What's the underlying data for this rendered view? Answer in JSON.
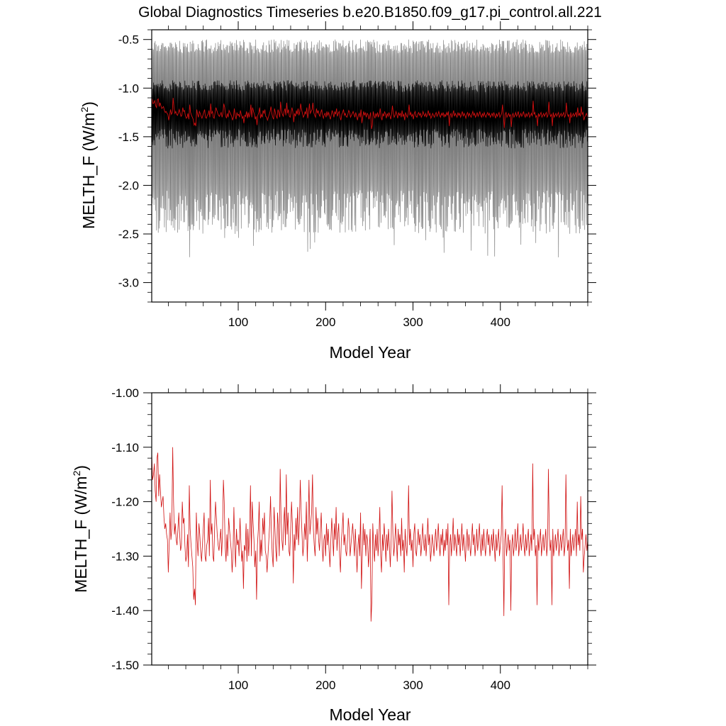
{
  "title": "Global Diagnostics Timeseries b.e20.B1850.f09_g17.pi_control.all.221",
  "colors": {
    "monthly": "#7f7f7f",
    "monthly_core": "#000000",
    "annual": "#d01010",
    "frame": "#000000"
  },
  "chart_data": [
    {
      "type": "line",
      "name": "monthly-and-annual-panel",
      "xlabel": "Model Year",
      "ylabel_main": "MELTH_F (W/m",
      "ylabel_sup": "2",
      "ylabel_close": ")",
      "xlim": [
        1,
        500
      ],
      "ylim": [
        -3.2,
        -0.4
      ],
      "xticks": [
        100,
        200,
        300,
        400
      ],
      "xtick_labels": [
        "100",
        "200",
        "300",
        "400"
      ],
      "yticks": [
        -0.5,
        -1.0,
        -1.5,
        -2.0,
        -2.5,
        -3.0
      ],
      "ytick_labels": [
        "-0.5",
        "-1.0",
        "-1.5",
        "-2.0",
        "-2.5",
        "-3.0"
      ],
      "series": [
        {
          "kind": "monthly",
          "approx_range_min": [
            -2.85,
            -2.1
          ],
          "approx_range_max": [
            -0.45,
            -0.65
          ],
          "approx_core": [
            -1.6,
            -0.85
          ]
        },
        {
          "kind": "annual-mean"
        }
      ]
    },
    {
      "type": "line",
      "name": "annual-panel",
      "xlabel": "Model Year",
      "ylabel_main": "MELTH_F (W/m",
      "ylabel_sup": "2",
      "ylabel_close": ")",
      "xlim": [
        1,
        500
      ],
      "ylim": [
        -1.5,
        -1.0
      ],
      "xticks": [
        100,
        200,
        300,
        400
      ],
      "xtick_labels": [
        "100",
        "200",
        "300",
        "400"
      ],
      "yticks": [
        -1.0,
        -1.1,
        -1.2,
        -1.3,
        -1.4,
        -1.5
      ],
      "ytick_labels": [
        "-1.00",
        "-1.10",
        "-1.20",
        "-1.30",
        "-1.40",
        "-1.50"
      ],
      "annual_series": {
        "x_start": 1,
        "x_step": 1,
        "values": [
          -1.11,
          -1.16,
          -1.15,
          -1.13,
          -1.18,
          -1.2,
          -1.12,
          -1.11,
          -1.19,
          -1.15,
          -1.18,
          -1.21,
          -1.2,
          -1.19,
          -1.23,
          -1.25,
          -1.24,
          -1.26,
          -1.27,
          -1.33,
          -1.28,
          -1.22,
          -1.27,
          -1.25,
          -1.1,
          -1.2,
          -1.26,
          -1.24,
          -1.27,
          -1.28,
          -1.25,
          -1.22,
          -1.26,
          -1.29,
          -1.28,
          -1.2,
          -1.24,
          -1.23,
          -1.28,
          -1.31,
          -1.3,
          -1.26,
          -1.32,
          -1.17,
          -1.25,
          -1.28,
          -1.3,
          -1.32,
          -1.38,
          -1.36,
          -1.39,
          -1.22,
          -1.27,
          -1.3,
          -1.24,
          -1.26,
          -1.29,
          -1.31,
          -1.28,
          -1.25,
          -1.22,
          -1.3,
          -1.31,
          -1.28,
          -1.27,
          -1.23,
          -1.3,
          -1.16,
          -1.26,
          -1.24,
          -1.3,
          -1.31,
          -1.25,
          -1.2,
          -1.23,
          -1.26,
          -1.28,
          -1.29,
          -1.27,
          -1.25,
          -1.3,
          -1.26,
          -1.16,
          -1.2,
          -1.28,
          -1.31,
          -1.26,
          -1.3,
          -1.23,
          -1.25,
          -1.27,
          -1.29,
          -1.33,
          -1.3,
          -1.21,
          -1.28,
          -1.32,
          -1.25,
          -1.28,
          -1.27,
          -1.3,
          -1.23,
          -1.27,
          -1.31,
          -1.29,
          -1.36,
          -1.28,
          -1.29,
          -1.24,
          -1.31,
          -1.25,
          -1.3,
          -1.26,
          -1.17,
          -1.3,
          -1.2,
          -1.24,
          -1.27,
          -1.32,
          -1.29,
          -1.38,
          -1.28,
          -1.25,
          -1.2,
          -1.31,
          -1.27,
          -1.3,
          -1.23,
          -1.26,
          -1.22,
          -1.29,
          -1.3,
          -1.33,
          -1.3,
          -1.27,
          -1.24,
          -1.19,
          -1.26,
          -1.3,
          -1.32,
          -1.21,
          -1.25,
          -1.29,
          -1.31,
          -1.22,
          -1.25,
          -1.3,
          -1.14,
          -1.23,
          -1.27,
          -1.29,
          -1.24,
          -1.21,
          -1.28,
          -1.15,
          -1.26,
          -1.22,
          -1.29,
          -1.3,
          -1.25,
          -1.2,
          -1.24,
          -1.35,
          -1.26,
          -1.29,
          -1.23,
          -1.27,
          -1.21,
          -1.28,
          -1.24,
          -1.16,
          -1.22,
          -1.26,
          -1.3,
          -1.28,
          -1.24,
          -1.27,
          -1.2,
          -1.31,
          -1.25,
          -1.16,
          -1.26,
          -1.24,
          -1.22,
          -1.15,
          -1.25,
          -1.28,
          -1.3,
          -1.21,
          -1.26,
          -1.23,
          -1.27,
          -1.29,
          -1.25,
          -1.22,
          -1.28,
          -1.31,
          -1.27,
          -1.26,
          -1.3,
          -1.24,
          -1.28,
          -1.25,
          -1.29,
          -1.32,
          -1.27,
          -1.23,
          -1.26,
          -1.3,
          -1.24,
          -1.27,
          -1.21,
          -1.29,
          -1.26,
          -1.24,
          -1.3,
          -1.33,
          -1.27,
          -1.25,
          -1.22,
          -1.28,
          -1.26,
          -1.29,
          -1.3,
          -1.27,
          -1.23,
          -1.25,
          -1.3,
          -1.28,
          -1.26,
          -1.24,
          -1.27,
          -1.3,
          -1.25,
          -1.29,
          -1.33,
          -1.28,
          -1.26,
          -1.3,
          -1.22,
          -1.36,
          -1.3,
          -1.24,
          -1.28,
          -1.25,
          -1.3,
          -1.26,
          -1.27,
          -1.32,
          -1.29,
          -1.25,
          -1.42,
          -1.38,
          -1.24,
          -1.28,
          -1.31,
          -1.26,
          -1.29,
          -1.25,
          -1.3,
          -1.27,
          -1.21,
          -1.3,
          -1.33,
          -1.26,
          -1.29,
          -1.24,
          -1.27,
          -1.31,
          -1.26,
          -1.29,
          -1.25,
          -1.28,
          -1.32,
          -1.27,
          -1.18,
          -1.26,
          -1.3,
          -1.28,
          -1.24,
          -1.27,
          -1.31,
          -1.25,
          -1.28,
          -1.26,
          -1.3,
          -1.23,
          -1.29,
          -1.27,
          -1.33,
          -1.25,
          -1.28,
          -1.3,
          -1.26,
          -1.17,
          -1.28,
          -1.25,
          -1.29,
          -1.27,
          -1.32,
          -1.26,
          -1.24,
          -1.29,
          -1.3,
          -1.27,
          -1.25,
          -1.28,
          -1.26,
          -1.3,
          -1.28,
          -1.24,
          -1.27,
          -1.29,
          -1.26,
          -1.3,
          -1.27,
          -1.23,
          -1.28,
          -1.26,
          -1.31,
          -1.29,
          -1.26,
          -1.28,
          -1.3,
          -1.27,
          -1.25,
          -1.29,
          -1.27,
          -1.24,
          -1.28,
          -1.3,
          -1.26,
          -1.28,
          -1.25,
          -1.3,
          -1.27,
          -1.29,
          -1.25,
          -1.28,
          -1.24,
          -1.39,
          -1.28,
          -1.26,
          -1.3,
          -1.27,
          -1.23,
          -1.29,
          -1.26,
          -1.28,
          -1.3,
          -1.25,
          -1.28,
          -1.26,
          -1.3,
          -1.27,
          -1.24,
          -1.29,
          -1.26,
          -1.28,
          -1.31,
          -1.27,
          -1.25,
          -1.29,
          -1.26,
          -1.28,
          -1.3,
          -1.27,
          -1.24,
          -1.28,
          -1.26,
          -1.3,
          -1.28,
          -1.25,
          -1.29,
          -1.27,
          -1.24,
          -1.28,
          -1.3,
          -1.26,
          -1.29,
          -1.25,
          -1.28,
          -1.3,
          -1.27,
          -1.25,
          -1.28,
          -1.26,
          -1.3,
          -1.28,
          -1.26,
          -1.29,
          -1.25,
          -1.28,
          -1.31,
          -1.26,
          -1.29,
          -1.27,
          -1.25,
          -1.3,
          -1.28,
          -1.26,
          -1.17,
          -1.29,
          -1.41,
          -1.27,
          -1.25,
          -1.3,
          -1.28,
          -1.26,
          -1.29,
          -1.27,
          -1.4,
          -1.28,
          -1.26,
          -1.3,
          -1.28,
          -1.25,
          -1.29,
          -1.27,
          -1.24,
          -1.3,
          -1.28,
          -1.26,
          -1.29,
          -1.27,
          -1.24,
          -1.28,
          -1.3,
          -1.26,
          -1.29,
          -1.27,
          -1.25,
          -1.3,
          -1.28,
          -1.26,
          -1.29,
          -1.13,
          -1.27,
          -1.25,
          -1.3,
          -1.28,
          -1.39,
          -1.26,
          -1.29,
          -1.27,
          -1.25,
          -1.3,
          -1.28,
          -1.26,
          -1.29,
          -1.27,
          -1.25,
          -1.3,
          -1.28,
          -1.14,
          -1.26,
          -1.29,
          -1.27,
          -1.39,
          -1.25,
          -1.3,
          -1.28,
          -1.26,
          -1.29,
          -1.27,
          -1.25,
          -1.3,
          -1.28,
          -1.26,
          -1.29,
          -1.27,
          -1.25,
          -1.3,
          -1.28,
          -1.15,
          -1.26,
          -1.29,
          -1.27,
          -1.36,
          -1.25,
          -1.3,
          -1.28,
          -1.26,
          -1.29,
          -1.27,
          -1.25,
          -1.3,
          -1.2,
          -1.28,
          -1.26,
          -1.29,
          -1.19,
          -1.27,
          -1.25,
          -1.33,
          -1.3,
          -1.28,
          -1.26,
          -1.29,
          -1.27,
          -1.25,
          -1.3,
          -1.28,
          -1.26,
          -1.29,
          -1.27,
          -1.25,
          -1.3,
          -1.28,
          -1.26,
          -1.29,
          -1.27
        ]
      }
    }
  ]
}
